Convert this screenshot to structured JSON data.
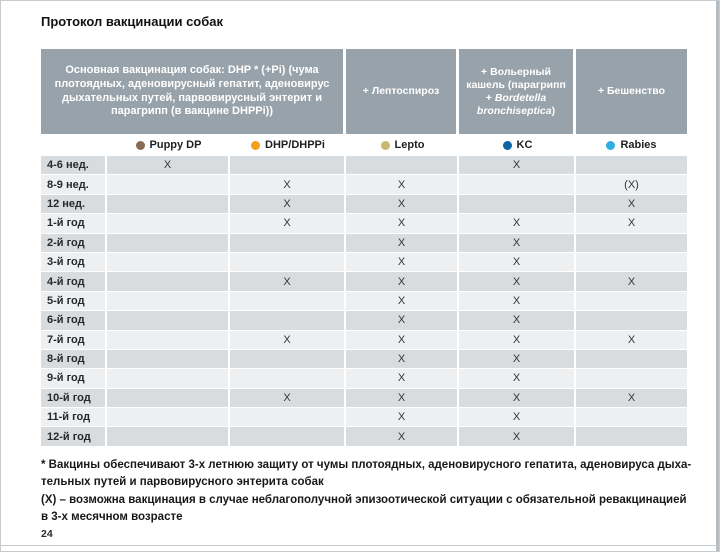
{
  "page": {
    "title": "Протокол вакцинации собак",
    "page_number": "24"
  },
  "table": {
    "header": {
      "main": "Основная вакцинация собак: DHP * (+Pi) (чума плотоядных, аденовирусный гепатит, аденовирус дыхательных путей, парвовирусный энтерит и парагрипп (в вакцине DHPPi))",
      "lepto": "+ Лептоспироз",
      "kc_prefix": "+ Вольерный кашель (парагрипп + ",
      "kc_italic": "Bordetella bronchiseptica",
      "kc_suffix": ")",
      "rabies": "+ Бешенство"
    },
    "legend": [
      {
        "label": "Puppy DP",
        "color": "#8b6a52"
      },
      {
        "label": "DHP/DHPPi",
        "color": "#f2a01e"
      },
      {
        "label": "Lepto",
        "color": "#c9ba6d"
      },
      {
        "label": "KC",
        "color": "#0d66a4"
      },
      {
        "label": "Rabies",
        "color": "#31aee3"
      }
    ],
    "columns": [
      "Puppy DP",
      "DHP/DHPPi",
      "Lepto",
      "KC",
      "Rabies"
    ],
    "rows": [
      {
        "label": "4-6 нед.",
        "marks": [
          "X",
          "",
          "",
          "X",
          ""
        ]
      },
      {
        "label": "8-9 нед.",
        "marks": [
          "",
          "X",
          "X",
          "",
          "(X)"
        ]
      },
      {
        "label": "12 нед.",
        "marks": [
          "",
          "X",
          "X",
          "",
          "X"
        ]
      },
      {
        "label": "1-й год",
        "marks": [
          "",
          "X",
          "X",
          "X",
          "X"
        ]
      },
      {
        "label": "2-й год",
        "marks": [
          "",
          "",
          "X",
          "X",
          ""
        ]
      },
      {
        "label": "3-й год",
        "marks": [
          "",
          "",
          "X",
          "X",
          ""
        ]
      },
      {
        "label": "4-й год",
        "marks": [
          "",
          "X",
          "X",
          "X",
          "X"
        ]
      },
      {
        "label": "5-й год",
        "marks": [
          "",
          "",
          "X",
          "X",
          ""
        ]
      },
      {
        "label": "6-й год",
        "marks": [
          "",
          "",
          "X",
          "X",
          ""
        ]
      },
      {
        "label": "7-й год",
        "marks": [
          "",
          "X",
          "X",
          "X",
          "X"
        ]
      },
      {
        "label": "8-й год",
        "marks": [
          "",
          "",
          "X",
          "X",
          ""
        ]
      },
      {
        "label": "9-й год",
        "marks": [
          "",
          "",
          "X",
          "X",
          ""
        ]
      },
      {
        "label": "10-й год",
        "marks": [
          "",
          "X",
          "X",
          "X",
          "X"
        ]
      },
      {
        "label": "11-й год",
        "marks": [
          "",
          "",
          "X",
          "X",
          ""
        ]
      },
      {
        "label": "12-й год",
        "marks": [
          "",
          "",
          "X",
          "X",
          ""
        ]
      }
    ]
  },
  "footnotes": [
    {
      "lines": [
        "* Вакцины обеспечивают 3-х летнюю защиту от чумы плотоядных, аденовирусного гепатита, аденовируса дыха-",
        "тельных путей и парвовирусного энтерита собак"
      ]
    },
    {
      "lines": [
        "(X) – возможна вакцинация в случае неблагополучной эпизоотической ситуации с обязательной ревакцинацией",
        "в 3-х месячном возрасте"
      ]
    }
  ],
  "colors": {
    "header_bg": "#98a2aa",
    "row_dark": "#d8dcdf",
    "row_light": "#edeff1"
  }
}
